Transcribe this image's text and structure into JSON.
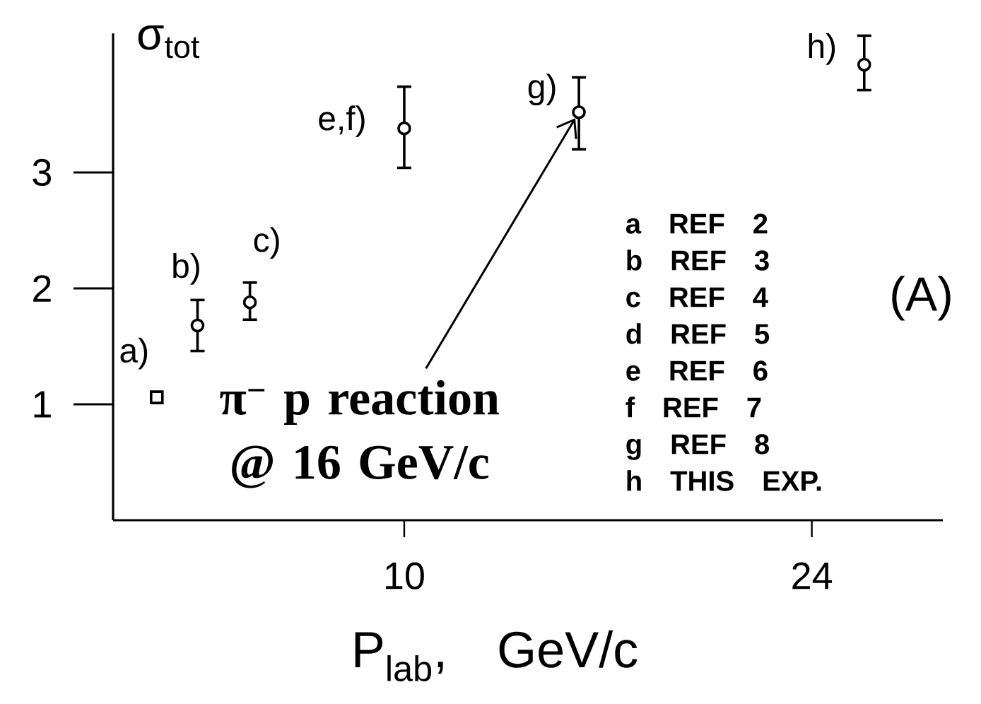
{
  "chart_data": {
    "type": "scatter",
    "xlabel": "P$_{lab}$, GeV/c",
    "ylabel": "σ$_{tot}$",
    "xlim": [
      0,
      28.5
    ],
    "ylim": [
      0,
      4.2
    ],
    "xticks": [
      10,
      24
    ],
    "yticks": [
      1,
      2,
      3
    ],
    "series": [
      {
        "color": "#000000",
        "marker": "square",
        "x": [
          1.5
        ],
        "values": [
          1.06
        ]
      },
      {
        "color": "#000000",
        "marker": "circle",
        "x": [
          2.9,
          4.7,
          10,
          16,
          25.8
        ],
        "values": [
          1.68,
          1.88,
          3.38,
          3.52,
          3.93
        ],
        "errors": [
          [
            1.46,
            1.9
          ],
          [
            1.73,
            2.05
          ],
          [
            3.04,
            3.74
          ],
          [
            3.2,
            3.82
          ],
          [
            3.71,
            4.18
          ]
        ]
      }
    ],
    "annotations": [
      {
        "text": "a)",
        "x": 1.5,
        "y": 1.06
      },
      {
        "text": "b)",
        "x": 2.9,
        "y": 1.68
      },
      {
        "text": "c)",
        "x": 4.7,
        "y": 1.88
      },
      {
        "text": "e,f)",
        "x": 10,
        "y": 3.38
      },
      {
        "text": "g)",
        "x": 16,
        "y": 3.52
      },
      {
        "text": "h)",
        "x": 25.8,
        "y": 3.93
      },
      {
        "text": "π$^{−}$ p reaction @ 16 GeV/c",
        "x": 16,
        "y": 3.52
      },
      "(A)",
      "a REF 2",
      "b REF 3",
      "c REF 4",
      "d REF 5",
      "e REF 6",
      "f REF 7",
      "g REF 8",
      "h THIS EXP."
    ]
  }
}
